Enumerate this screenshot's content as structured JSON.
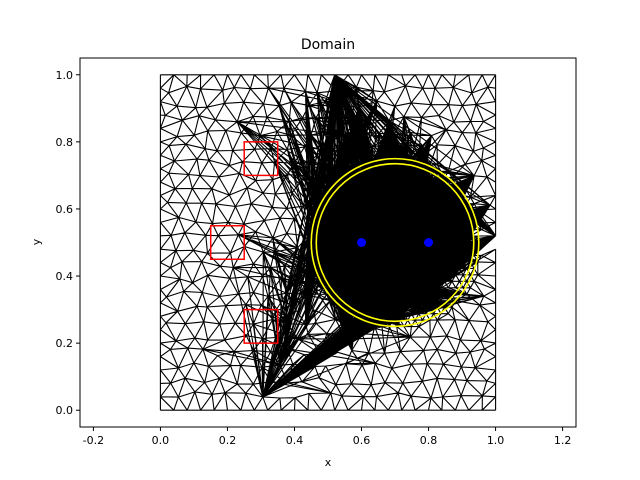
{
  "chart_data": {
    "type": "scatter",
    "title": "Domain",
    "xlabel": "x",
    "ylabel": "y",
    "xlim": [
      -0.24,
      1.24
    ],
    "ylim": [
      -0.05,
      1.05
    ],
    "xticks": [
      "-0.2",
      "0.0",
      "0.2",
      "0.4",
      "0.6",
      "0.8",
      "1.0",
      "1.2"
    ],
    "yticks": [
      "0.0",
      "0.2",
      "0.4",
      "0.6",
      "0.8",
      "1.0"
    ],
    "grid": false,
    "domain": {
      "x": [
        0.0,
        1.0
      ],
      "y": [
        0.0,
        1.0
      ]
    },
    "mesh": {
      "coarse_spacing": 0.05,
      "fine_spacing": 0.022,
      "refined_center": [
        0.7,
        0.5
      ],
      "refined_radius": 0.27
    },
    "circles": [
      {
        "center": [
          0.7,
          0.5
        ],
        "radius": 0.25
      },
      {
        "center": [
          0.7,
          0.5
        ],
        "radius": 0.235
      }
    ],
    "points": [
      {
        "x": 0.6,
        "y": 0.5
      },
      {
        "x": 0.8,
        "y": 0.5
      }
    ],
    "squares": [
      {
        "x0": 0.25,
        "y0": 0.7,
        "x1": 0.35,
        "y1": 0.8
      },
      {
        "x0": 0.15,
        "y0": 0.45,
        "x1": 0.25,
        "y1": 0.55
      },
      {
        "x0": 0.25,
        "y0": 0.2,
        "x1": 0.35,
        "y1": 0.3
      }
    ],
    "colors": {
      "mesh": "#000000",
      "circle": "#ffff00",
      "points": "#0000ff",
      "squares": "#ff0000"
    }
  }
}
